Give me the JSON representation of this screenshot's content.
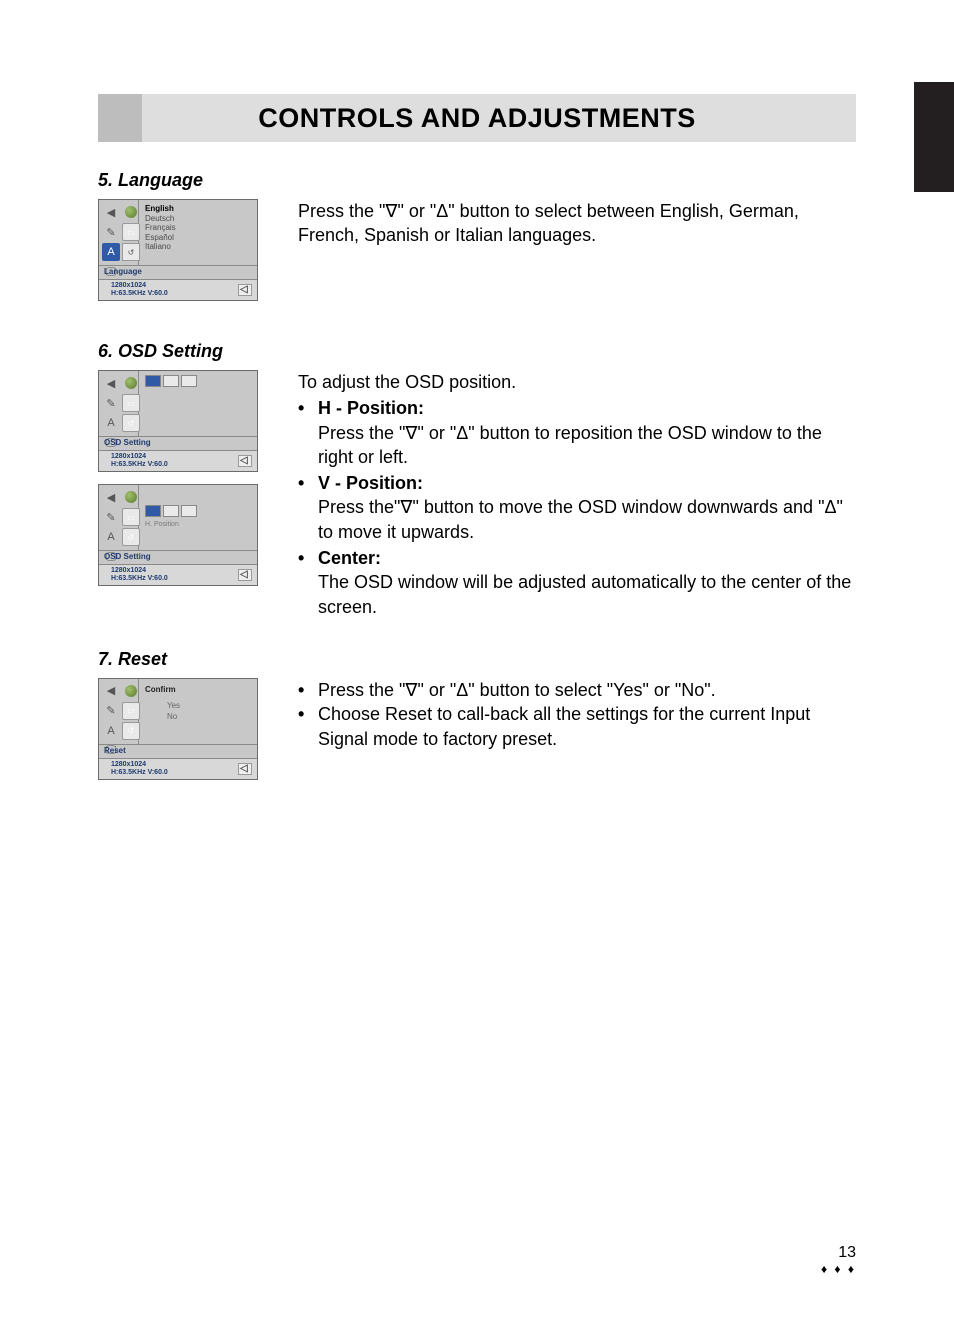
{
  "banner": {
    "title": "CONTROLS AND ADJUSTMENTS"
  },
  "colors": {
    "banner_left": "#bdbdbd",
    "banner_right": "#dedede",
    "page_tab": "#231f20",
    "osd_bg": "#c8c8c8",
    "osd_accent": "#1f3a6e",
    "osd_selected": "#2e5aa8",
    "text": "#000000"
  },
  "sections": {
    "language": {
      "heading": "5. Language",
      "body": "Press the \"∇\" or \"Δ\" button to select between English, German, French, Spanish or Italian languages.",
      "osd": {
        "strip": "Language",
        "status_res": "1280x1024",
        "status_hz": "H:63.5KHz V:60.0",
        "list": [
          "English",
          "Deutsch",
          "Français",
          "Español",
          "Italiano"
        ]
      }
    },
    "osd_setting": {
      "heading": "6. OSD Setting",
      "intro": "To adjust the OSD position.",
      "items": [
        {
          "title": "H - Position:",
          "body": "Press the \"∇\" or \"Δ\" button to reposition the OSD window to the right or left."
        },
        {
          "title": "V - Position:",
          "body": "Press the\"∇\" button to move the OSD window downwards and \"Δ\" to move it upwards."
        },
        {
          "title": "Center:",
          "body": "The OSD window will be adjusted automatically to the center of the screen."
        }
      ],
      "osd1": {
        "strip": "OSD Setting",
        "status_res": "1280x1024",
        "status_hz": "H:63.5KHz V:60.0"
      },
      "osd2": {
        "strip": "OSD Setting",
        "sublabel": "H. Position",
        "status_res": "1280x1024",
        "status_hz": "H:63.5KHz V:60.0"
      }
    },
    "reset": {
      "heading": "7. Reset",
      "bullets": [
        "Press the \"∇\" or \"Δ\" button to select \"Yes\" or \"No\".",
        "Choose Reset to call-back all the settings for the current Input Signal mode to factory preset."
      ],
      "osd": {
        "strip": "Reset",
        "confirm": "Confirm",
        "yes": "Yes",
        "no": "No",
        "status_res": "1280x1024",
        "status_hz": "H:63.5KHz V:60.0"
      }
    }
  },
  "footer": {
    "page": "13",
    "marks": "♦ ♦ ♦"
  }
}
